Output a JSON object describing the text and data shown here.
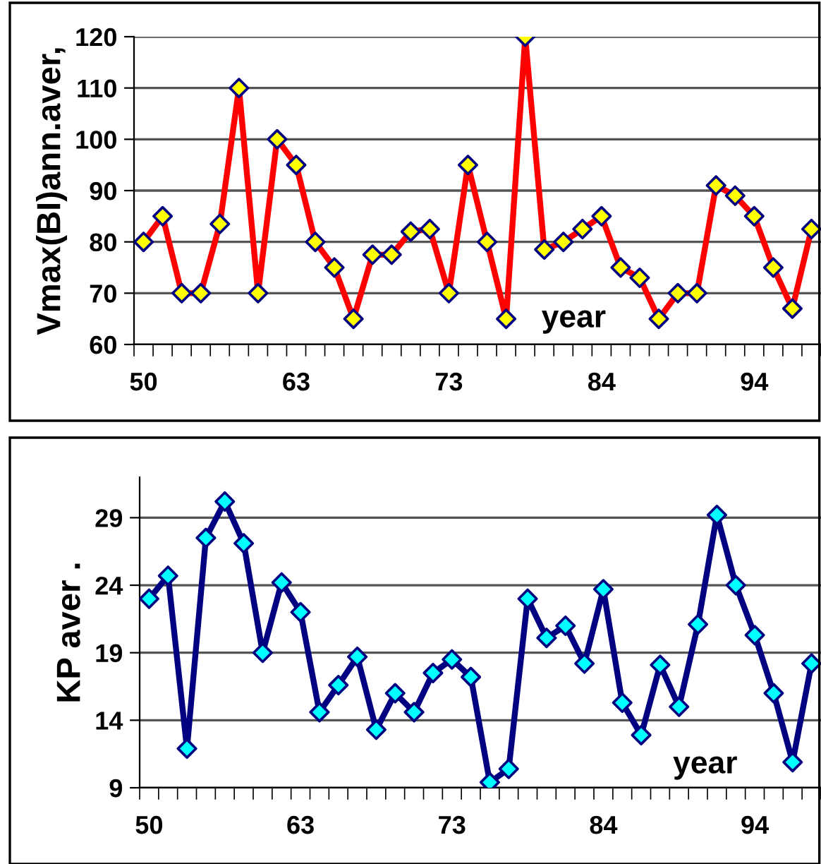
{
  "chart_data": [
    {
      "type": "line",
      "ylabel": "Vmax(BI)ann.aver,",
      "xlabel": "year",
      "categories": [
        "50",
        null,
        null,
        null,
        null,
        null,
        null,
        null,
        "63",
        null,
        null,
        null,
        null,
        null,
        null,
        null,
        "73",
        null,
        null,
        null,
        null,
        null,
        null,
        null,
        "84",
        null,
        null,
        null,
        null,
        null,
        null,
        null,
        "94",
        null,
        null,
        null
      ],
      "series": [
        {
          "color": "#ff0000",
          "colors": [
            "#ffff00",
            "#ffff00",
            "#ffff00",
            "#ffff00",
            "#ffff00",
            "#ffff00",
            "#ffff00",
            "#ffff00",
            "#ffff00",
            "#ffff00",
            "#ffff00",
            "#ffff00",
            "#ffff00",
            "#ffff00",
            "#ffff00",
            "#ffff00",
            "#ffff00",
            "#ffff00",
            "#ffff00",
            "#ffff00",
            "#ffff00",
            "#ffff00",
            "#ffff00",
            "#ffff00",
            "#ffff00",
            "#ffff00",
            "#ffff00",
            "#ffff00",
            "#ffff00",
            "#ffff00",
            "#ffff00",
            "#ffff00",
            "#ffff00",
            "#ffff00",
            "#ffff00",
            "#ffff00"
          ],
          "values": [
            80,
            85,
            70,
            70,
            83.5,
            110,
            70,
            100,
            95,
            80,
            75,
            65,
            77.5,
            77.5,
            82,
            82.5,
            70,
            95,
            80,
            65,
            120,
            78.5,
            80,
            82.5,
            85,
            75,
            73,
            65,
            70,
            70,
            91,
            89,
            85,
            75,
            67,
            82.5
          ]
        }
      ],
      "ylim": [
        60,
        120
      ],
      "yticks": [
        60,
        70,
        80,
        90,
        100,
        110,
        120
      ],
      "grid": "y",
      "marker": "diamond",
      "line_style": "solid"
    },
    {
      "type": "line",
      "ylabel": "KP aver .",
      "xlabel": "year",
      "categories": [
        "50",
        null,
        null,
        null,
        null,
        null,
        null,
        null,
        "63",
        null,
        null,
        null,
        null,
        null,
        null,
        null,
        "73",
        null,
        null,
        null,
        null,
        null,
        null,
        null,
        "84",
        null,
        null,
        null,
        null,
        null,
        null,
        null,
        "94",
        null,
        null,
        null
      ],
      "series": [
        {
          "color": "#000080",
          "colors": [
            "#00ffff",
            "#00ffff",
            "#00ffff",
            "#00ffff",
            "#00ffff",
            "#00ffff",
            "#00ffff",
            "#00ffff",
            "#00ffff",
            "#00ffff",
            "#00ffff",
            "#00ffff",
            "#00ffff",
            "#00ffff",
            "#00ffff",
            "#00ffff",
            "#00ffff",
            "#00ffff",
            "#00ffff",
            "#00ffff",
            "#00ffff",
            "#00ffff",
            "#00ffff",
            "#00ffff",
            "#00ffff",
            "#00ffff",
            "#00ffff",
            "#00ffff",
            "#00ffff",
            "#00ffff",
            "#00ffff",
            "#00ffff",
            "#00ffff",
            "#00ffff",
            "#00ffff",
            "#00ffff"
          ],
          "values": [
            23.0,
            24.7,
            11.9,
            27.5,
            30.2,
            27.1,
            19.0,
            24.2,
            22.0,
            14.6,
            16.6,
            18.7,
            13.3,
            16.0,
            14.6,
            17.5,
            18.5,
            17.2,
            9.4,
            10.4,
            23.0,
            20.1,
            21.0,
            18.2,
            23.7,
            15.3,
            12.9,
            18.1,
            15.0,
            21.1,
            29.2,
            24.0,
            20.3,
            16.0,
            10.9,
            18.2
          ]
        }
      ],
      "ylim": [
        9,
        32
      ],
      "yticks": [
        9,
        14,
        19,
        24,
        29
      ],
      "grid": "y",
      "marker": "diamond",
      "line_style": "solid"
    }
  ]
}
